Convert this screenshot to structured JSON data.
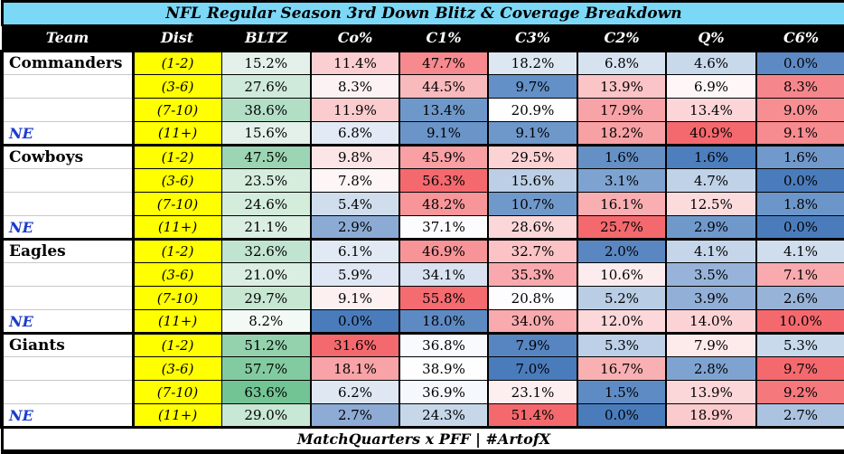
{
  "title": "NFL Regular Season 3rd Down Blitz & Coverage Breakdown",
  "footer": "MatchQuarters x PFF | #ArtofX",
  "colors": {
    "title_bg": "#7cd8f7",
    "header_bg": "#000000",
    "header_text": "#ffffff",
    "dist_bg": "#ffff00",
    "ne_text": "#1c3ccd",
    "heat_red_max": "#f4696e",
    "heat_blue_min": "#4a7cbc",
    "heat_green": "#6ac28f"
  },
  "chart_data": {
    "type": "table",
    "title": "NFL Regular Season 3rd Down Blitz & Coverage Breakdown",
    "footer": "MatchQuarters x PFF | #ArtofX",
    "columns": [
      "Team",
      "Dist",
      "BLTZ",
      "Co%",
      "C1%",
      "C3%",
      "C2%",
      "Q%",
      "C6%"
    ],
    "teams": [
      "Commanders",
      "Cowboys",
      "Eagles",
      "Giants"
    ],
    "rows": [
      {
        "team": "Commanders",
        "ne": false,
        "group_start": true,
        "dist": "(1-2)",
        "values": [
          "15.2%",
          "11.4%",
          "47.7%",
          "18.2%",
          "6.8%",
          "4.6%",
          "0.0%"
        ],
        "colors": [
          "#e4f1ea",
          "#fbced1",
          "#f68a8f",
          "#dde7f2",
          "#d6e2f0",
          "#c9d9ec",
          "#5d8ac4"
        ]
      },
      {
        "team": "",
        "ne": false,
        "group_start": false,
        "dist": "(3-6)",
        "values": [
          "27.6%",
          "8.3%",
          "44.5%",
          "9.7%",
          "13.9%",
          "6.9%",
          "8.3%"
        ],
        "colors": [
          "#cfeadb",
          "#fdf2f3",
          "#f9babd",
          "#6290c7",
          "#fbc4c7",
          "#fef6f7",
          "#f5878c"
        ]
      },
      {
        "team": "",
        "ne": false,
        "group_start": false,
        "dist": "(7-10)",
        "values": [
          "38.6%",
          "11.9%",
          "13.4%",
          "20.9%",
          "17.9%",
          "13.4%",
          "9.0%"
        ],
        "colors": [
          "#b2dec5",
          "#fbccce",
          "#6e98ca",
          "#fefeff",
          "#f8a3a7",
          "#fbd5d7",
          "#f68e92"
        ]
      },
      {
        "team": "NE",
        "ne": true,
        "group_start": false,
        "dist": "(11+)",
        "values": [
          "15.6%",
          "6.8%",
          "9.1%",
          "9.1%",
          "18.2%",
          "40.9%",
          "9.1%"
        ],
        "colors": [
          "#e3f1ea",
          "#e2eaf6",
          "#6b95c9",
          "#6e97ca",
          "#f8a1a5",
          "#f4696e",
          "#f68b90"
        ]
      },
      {
        "team": "Cowboys",
        "ne": false,
        "group_start": true,
        "dist": "(1-2)",
        "values": [
          "47.5%",
          "9.8%",
          "45.9%",
          "29.5%",
          "1.6%",
          "1.6%",
          "1.6%"
        ],
        "colors": [
          "#9cd5b3",
          "#fce5e6",
          "#f8a0a4",
          "#fbd3d5",
          "#6490c6",
          "#4d7ebd",
          "#7199cc"
        ]
      },
      {
        "team": "",
        "ne": false,
        "group_start": false,
        "dist": "(3-6)",
        "values": [
          "23.5%",
          "7.8%",
          "56.3%",
          "15.6%",
          "3.1%",
          "4.7%",
          "0.0%"
        ],
        "colors": [
          "#d6edde",
          "#fdf5f6",
          "#f4696e",
          "#bccfe6",
          "#7ea3d1",
          "#c0d2e8",
          "#4a7cbc"
        ]
      },
      {
        "team": "",
        "ne": false,
        "group_start": false,
        "dist": "(7-10)",
        "values": [
          "24.6%",
          "5.4%",
          "48.2%",
          "10.7%",
          "16.1%",
          "12.5%",
          "1.8%"
        ],
        "colors": [
          "#d3ecdc",
          "#cfdded",
          "#f79599",
          "#7099cb",
          "#f9aeb2",
          "#fcdbdd",
          "#6c96c9"
        ]
      },
      {
        "team": "NE",
        "ne": true,
        "group_start": false,
        "dist": "(11+)",
        "values": [
          "21.1%",
          "2.9%",
          "37.1%",
          "28.6%",
          "25.7%",
          "2.9%",
          "0.0%"
        ],
        "colors": [
          "#daeee2",
          "#8cabd4",
          "#fcfcfe",
          "#fbd7d9",
          "#f4696e",
          "#7099cb",
          "#4a7cbc"
        ]
      },
      {
        "team": "Eagles",
        "ne": false,
        "group_start": true,
        "dist": "(1-2)",
        "values": [
          "32.6%",
          "6.1%",
          "46.9%",
          "32.7%",
          "2.0%",
          "4.1%",
          "4.1%"
        ],
        "colors": [
          "#c0e4cf",
          "#e0e9f4",
          "#f79498",
          "#fbc3c6",
          "#5a87c2",
          "#c5d6ea",
          "#cfdded"
        ]
      },
      {
        "team": "",
        "ne": false,
        "group_start": false,
        "dist": "(3-6)",
        "values": [
          "21.0%",
          "5.9%",
          "34.1%",
          "35.3%",
          "10.6%",
          "3.5%",
          "7.1%"
        ],
        "colors": [
          "#daeee2",
          "#dee7f3",
          "#d8e2f1",
          "#f9a9ad",
          "#fdecee",
          "#97b3d9",
          "#f8aaae"
        ]
      },
      {
        "team": "",
        "ne": false,
        "group_start": false,
        "dist": "(7-10)",
        "values": [
          "29.7%",
          "9.1%",
          "55.8%",
          "20.8%",
          "5.2%",
          "3.9%",
          "2.6%"
        ],
        "colors": [
          "#c7e7d3",
          "#fdf0f1",
          "#f46b70",
          "#fdfdff",
          "#b9cde5",
          "#92afd7",
          "#97b3d8"
        ]
      },
      {
        "team": "NE",
        "ne": true,
        "group_start": false,
        "dist": "(11+)",
        "values": [
          "8.2%",
          "0.0%",
          "18.0%",
          "34.0%",
          "12.0%",
          "14.0%",
          "10.0%"
        ],
        "colors": [
          "#f3faf6",
          "#4a7cbc",
          "#5e8ac4",
          "#f9aaae",
          "#fcd8da",
          "#fcd3d5",
          "#f4696e"
        ]
      },
      {
        "team": "Giants",
        "ne": false,
        "group_start": true,
        "dist": "(1-2)",
        "values": [
          "51.2%",
          "31.6%",
          "36.8%",
          "7.9%",
          "5.3%",
          "7.9%",
          "5.3%"
        ],
        "colors": [
          "#93d2ad",
          "#f4696e",
          "#f8fafd",
          "#5785c1",
          "#bdd0e7",
          "#fdeaeb",
          "#c9d9ec"
        ]
      },
      {
        "team": "",
        "ne": false,
        "group_start": false,
        "dist": "(3-6)",
        "values": [
          "57.7%",
          "18.1%",
          "38.9%",
          "7.0%",
          "16.7%",
          "2.8%",
          "9.7%"
        ],
        "colors": [
          "#82cba0",
          "#f8a3a7",
          "#fefeff",
          "#4a7cbc",
          "#f9b0b3",
          "#7ea3d0",
          "#f4696e"
        ]
      },
      {
        "team": "",
        "ne": false,
        "group_start": false,
        "dist": "(7-10)",
        "values": [
          "63.6%",
          "6.2%",
          "36.9%",
          "23.1%",
          "1.5%",
          "13.9%",
          "9.2%"
        ],
        "colors": [
          "#72c494",
          "#dfe7f3",
          "#f5f8fc",
          "#fdeff0",
          "#5e8bc4",
          "#fcd7d9",
          "#f5787d"
        ]
      },
      {
        "team": "NE",
        "ne": true,
        "group_start": false,
        "dist": "(11+)",
        "values": [
          "29.0%",
          "2.7%",
          "24.3%",
          "51.4%",
          "0.0%",
          "18.9%",
          "2.7%"
        ],
        "colors": [
          "#c8e7d4",
          "#8dabd5",
          "#c6d7ea",
          "#f4696e",
          "#4a7cbc",
          "#fbcacd",
          "#abc3e0"
        ]
      }
    ]
  }
}
